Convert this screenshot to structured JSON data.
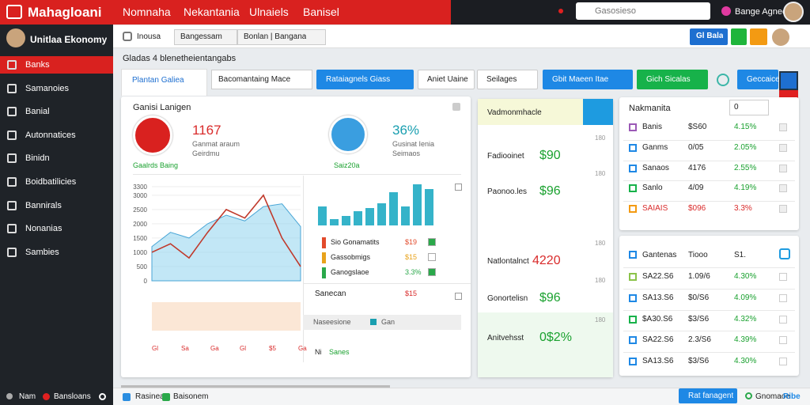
{
  "topbar": {
    "logo": "Mahagloani",
    "menu": [
      "Nomnaha",
      "Nekantania",
      "Ulnaiels",
      "Banisel"
    ],
    "search": "Gasosieso",
    "user": "Bange Agnec"
  },
  "sidebar": {
    "profile": "Unitlaa Ekonomy",
    "items": [
      "Banks",
      "Samanoies",
      "Banial",
      "Autonnatices",
      "Binidn",
      "Boidbatilicies",
      "Bannirals",
      "Nonanias",
      "Sambies"
    ]
  },
  "toolbar": {
    "label": "Inousa",
    "selects": [
      "Bangessam",
      "Bonlan | Bangana"
    ],
    "button": "Gl Bala"
  },
  "breadcrumb": "Gladas 4 blenetheientangabs",
  "filters": {
    "tab": "Plantan Galiea",
    "select": "Bacomantaing Mace",
    "buttons": [
      "Rataiagnels Giass",
      "Aniet Uaine",
      "Seilages",
      "Gbit Maeen Itae",
      "Gich Sicalas",
      "Geccaice"
    ]
  },
  "overview": {
    "title": "Ganisi Lanigen",
    "kpis": [
      {
        "value": "1167",
        "lines": [
          "Ganmat araum",
          "Geirdmu"
        ],
        "note": "Gaalrds Baing"
      },
      {
        "value": "36%",
        "lines": [
          "Gusinat Ienia",
          "Seimaos"
        ],
        "note": "Saiz20a"
      }
    ],
    "legend": [
      {
        "label": "Sio Gonamatits",
        "value": "$19"
      },
      {
        "label": "Gassobmigs",
        "value": "$15"
      },
      {
        "label": "Ganogslaoe",
        "value": "3.3%"
      }
    ],
    "list": {
      "title": "Sanecan",
      "value": "$15",
      "search": "Naseesione",
      "tag": "Gan",
      "foot": [
        "Ni",
        "Sanes"
      ]
    },
    "chart_labels": [
      "Gl",
      "Sa",
      "Ga",
      "Gl",
      "$5",
      "Ga"
    ]
  },
  "chart_data": {
    "type": "line",
    "series": [
      {
        "color": "#8fd3ee",
        "values": [
          1200,
          1700,
          1500,
          2000,
          2300,
          2100,
          2600,
          2700,
          1900
        ]
      },
      {
        "color": "#c0392b",
        "values": [
          1000,
          1300,
          800,
          1700,
          2500,
          2200,
          3000,
          1500,
          500
        ]
      }
    ],
    "ylim": [
      0,
      3300
    ],
    "yticks": [
      0,
      500,
      1000,
      1500,
      2000,
      2500,
      3000,
      3300
    ],
    "bars": {
      "color": "#35b3c9",
      "values": [
        1.2,
        0.4,
        0.6,
        0.9,
        1.1,
        1.4,
        2.1,
        1.2,
        2.6,
        2.3
      ]
    }
  },
  "reports": {
    "title": "Vadmonmhacle",
    "rows": [
      {
        "label": "Fadiooinet",
        "value": "$90",
        "side": "180",
        "color": "#1aa12f"
      },
      {
        "label": "Paonoo.les",
        "value": "$96",
        "side": "180",
        "color": "#1aa12f"
      },
      {
        "label": "Natlontalnct",
        "value": "4220",
        "side": "180",
        "color": "#d92b2b"
      },
      {
        "label": "Gonortelisn",
        "value": "$96",
        "side": "180",
        "color": "#1aa12f"
      },
      {
        "label": "Anitvehsst",
        "value": "0$2%",
        "side": "180",
        "color": "#1aa12f"
      }
    ]
  },
  "table1": {
    "title": "Nakmanita",
    "select": "0",
    "rows": [
      [
        "Banis",
        "$S60",
        "4.15%"
      ],
      [
        "Ganms",
        "0/05",
        "2.05%"
      ],
      [
        "Sanaos",
        "4176",
        "2.55%"
      ],
      [
        "Sanlo",
        "4/09",
        "4.19%"
      ],
      [
        "SAIAIS",
        "$096",
        "3.3%"
      ]
    ]
  },
  "table2": {
    "head": [
      "Gantenas",
      "Tiooo",
      "S1."
    ],
    "rows": [
      [
        "SA22.S6",
        "1.09/6",
        "4.30%"
      ],
      [
        "SA13.S6",
        "$0/S6",
        "4.09%"
      ],
      [
        "$A30.S6",
        "$3/S6",
        "4.32%"
      ],
      [
        "SA22.S6",
        "2.3/S6",
        "4.39%"
      ],
      [
        "SA13.S6",
        "$3/S6",
        "4.30%"
      ]
    ]
  },
  "footer": {
    "left": [
      "Nam",
      "Bansloans"
    ],
    "right": [
      "Rasinea",
      "Baisonem"
    ],
    "button": "Rat fanagent",
    "extra": [
      "Gnomaoe",
      "Ribe"
    ]
  }
}
